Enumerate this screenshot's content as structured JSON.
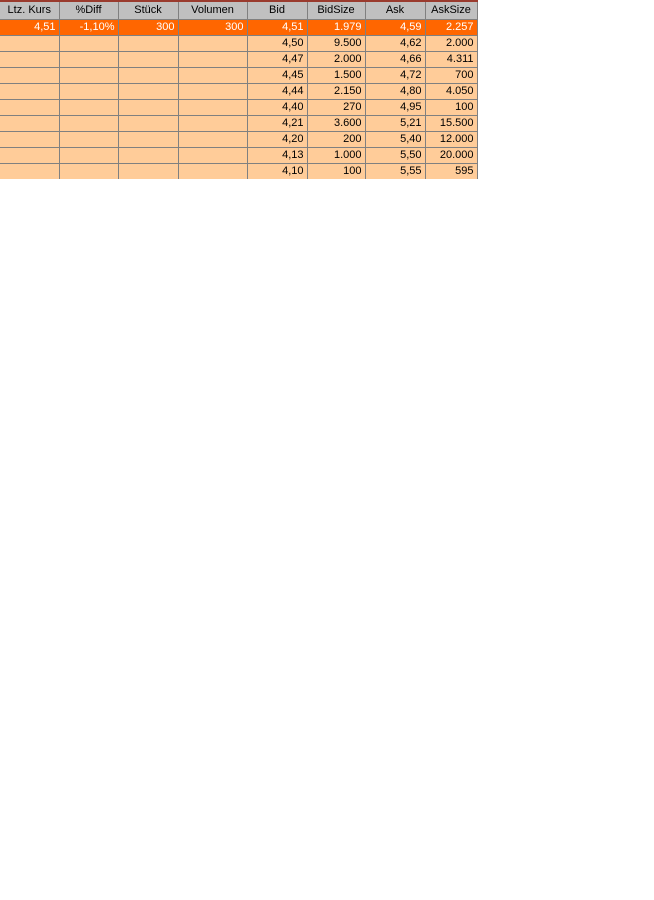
{
  "window": {
    "background": "#FFFFFF"
  },
  "colors": {
    "header_bg": "#C0C0C0",
    "selected_row_bg": "#FF6600",
    "selected_row_text": "#FFFFFF",
    "row_bg": "#FFCC99",
    "grid_border": "#808080",
    "top_line": "#9A3B2E",
    "text": "#000000"
  },
  "table": {
    "name": "order-book",
    "columns": [
      "Ltz. Kurs",
      "%Diff",
      "Stück",
      "Volumen",
      "Bid",
      "BidSize",
      "Ask",
      "AskSize"
    ],
    "rows": [
      [
        "4,51",
        "-1,10%",
        "300",
        "300",
        "4,51",
        "1.979",
        "4,59",
        "2.257"
      ],
      [
        "",
        "",
        "",
        "",
        "4,50",
        "9.500",
        "4,62",
        "2.000"
      ],
      [
        "",
        "",
        "",
        "",
        "4,47",
        "2.000",
        "4,66",
        "4.311"
      ],
      [
        "",
        "",
        "",
        "",
        "4,45",
        "1.500",
        "4,72",
        "700"
      ],
      [
        "",
        "",
        "",
        "",
        "4,44",
        "2.150",
        "4,80",
        "4.050"
      ],
      [
        "",
        "",
        "",
        "",
        "4,40",
        "270",
        "4,95",
        "100"
      ],
      [
        "",
        "",
        "",
        "",
        "4,21",
        "3.600",
        "5,21",
        "15.500"
      ],
      [
        "",
        "",
        "",
        "",
        "4,20",
        "200",
        "5,40",
        "12.000"
      ],
      [
        "",
        "",
        "",
        "",
        "4,13",
        "1.000",
        "5,50",
        "20.000"
      ],
      [
        "",
        "",
        "",
        "",
        "4,10",
        "100",
        "5,55",
        "595"
      ]
    ]
  }
}
